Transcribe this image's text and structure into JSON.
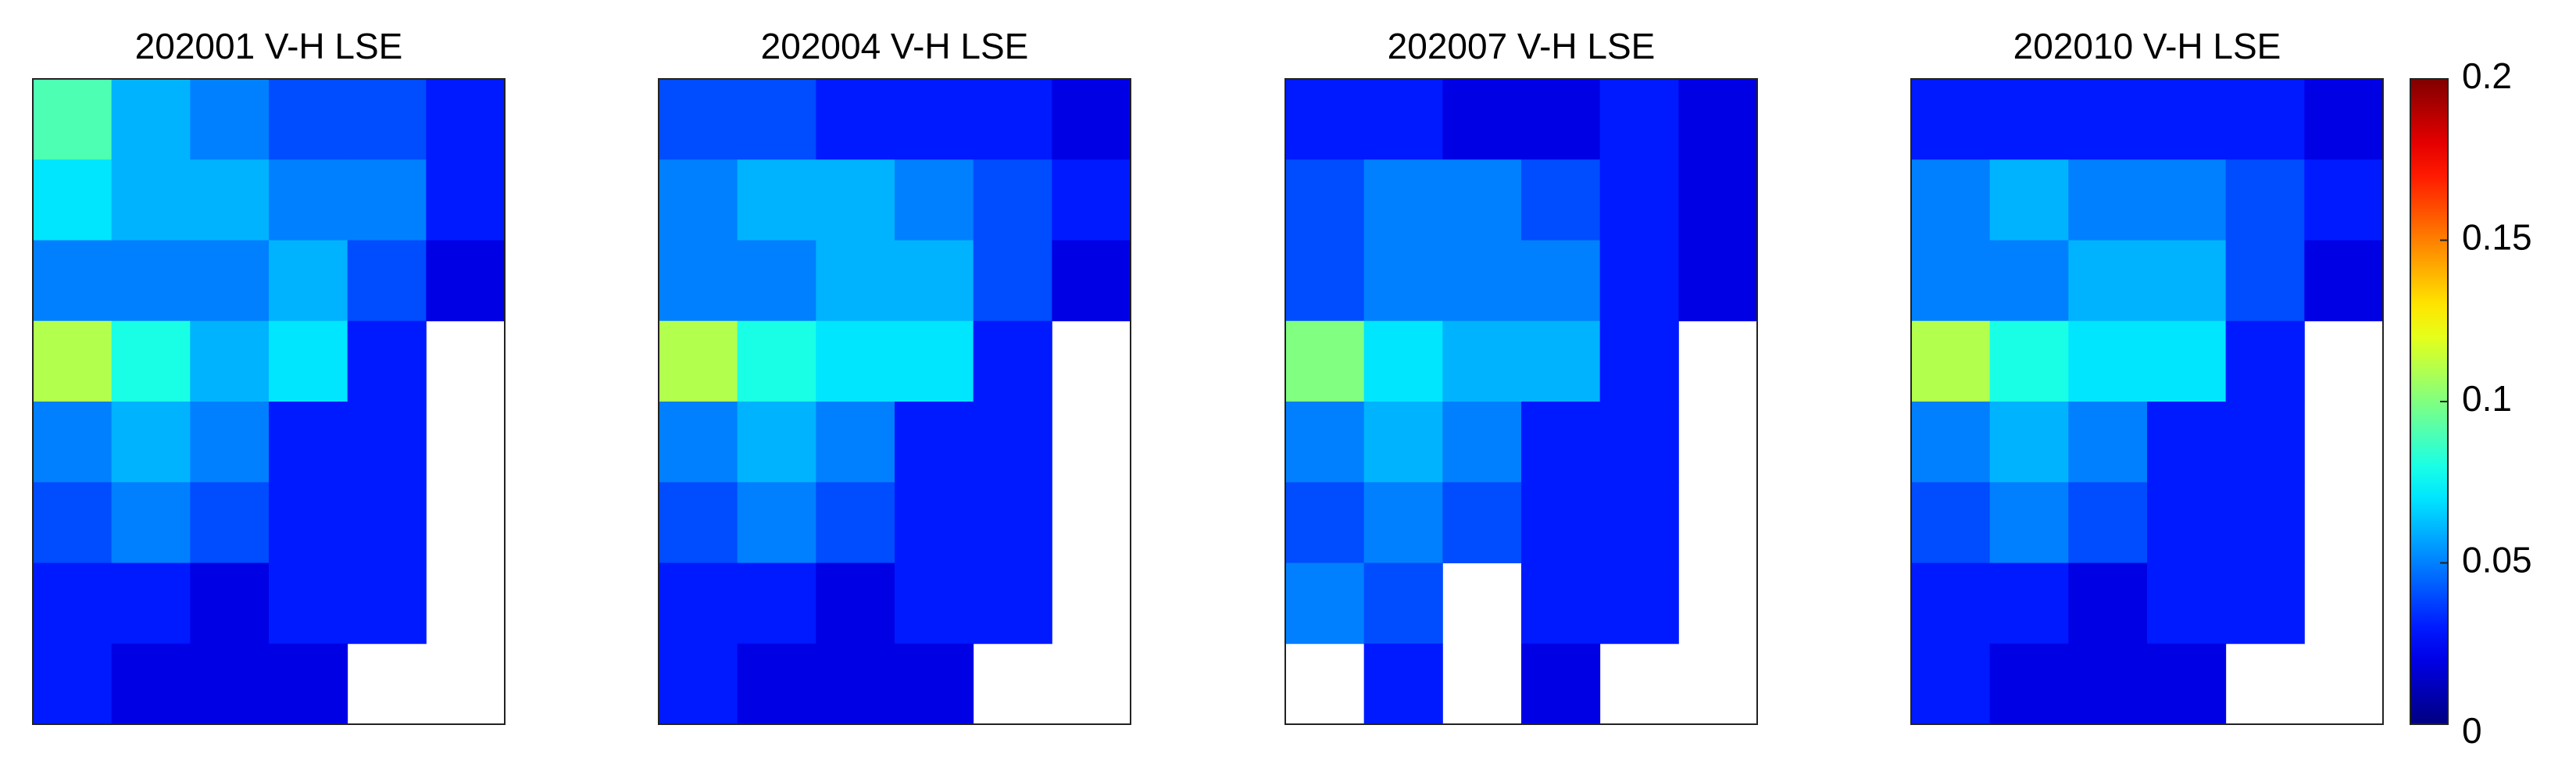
{
  "chart_data": [
    {
      "type": "heatmap",
      "title": "202001 V-H LSE",
      "clim": [
        0,
        0.2
      ],
      "cmap": "jet",
      "values": [
        [
          0.09,
          0.06,
          0.05,
          0.04,
          0.04,
          0.03
        ],
        [
          0.07,
          0.06,
          0.06,
          0.05,
          0.05,
          0.03
        ],
        [
          0.05,
          0.05,
          0.05,
          0.06,
          0.04,
          0.02
        ],
        [
          0.11,
          0.08,
          0.06,
          0.07,
          0.03,
          null
        ],
        [
          0.05,
          0.06,
          0.05,
          0.03,
          0.03,
          null
        ],
        [
          0.04,
          0.05,
          0.04,
          0.03,
          0.03,
          null
        ],
        [
          0.03,
          0.03,
          0.02,
          0.03,
          0.03,
          null
        ],
        [
          0.03,
          0.02,
          0.02,
          0.02,
          null,
          null
        ]
      ]
    },
    {
      "type": "heatmap",
      "title": "202004 V-H LSE",
      "clim": [
        0,
        0.2
      ],
      "cmap": "jet",
      "values": [
        [
          0.04,
          0.04,
          0.03,
          0.03,
          0.03,
          0.02
        ],
        [
          0.05,
          0.06,
          0.06,
          0.05,
          0.04,
          0.03
        ],
        [
          0.05,
          0.05,
          0.06,
          0.06,
          0.04,
          0.02
        ],
        [
          0.11,
          0.08,
          0.07,
          0.07,
          0.03,
          null
        ],
        [
          0.05,
          0.06,
          0.05,
          0.03,
          0.03,
          null
        ],
        [
          0.04,
          0.05,
          0.04,
          0.03,
          0.03,
          null
        ],
        [
          0.03,
          0.03,
          0.02,
          0.03,
          0.03,
          null
        ],
        [
          0.03,
          0.02,
          0.02,
          0.02,
          null,
          null
        ]
      ]
    },
    {
      "type": "heatmap",
      "title": "202007 V-H LSE",
      "clim": [
        0,
        0.2
      ],
      "cmap": "jet",
      "values": [
        [
          0.03,
          0.03,
          0.02,
          0.02,
          0.03,
          0.02
        ],
        [
          0.04,
          0.05,
          0.05,
          0.04,
          0.03,
          0.02
        ],
        [
          0.04,
          0.05,
          0.05,
          0.05,
          0.03,
          0.02
        ],
        [
          0.1,
          0.07,
          0.06,
          0.06,
          0.03,
          null
        ],
        [
          0.05,
          0.06,
          0.05,
          0.03,
          0.03,
          null
        ],
        [
          0.04,
          0.05,
          0.04,
          0.03,
          0.03,
          null
        ],
        [
          0.05,
          0.04,
          null,
          0.03,
          0.03,
          null
        ],
        [
          null,
          0.03,
          null,
          0.02,
          null,
          null
        ]
      ]
    },
    {
      "type": "heatmap",
      "title": "202010 V-H LSE",
      "clim": [
        0,
        0.2
      ],
      "cmap": "jet",
      "values": [
        [
          0.03,
          0.03,
          0.03,
          0.03,
          0.03,
          0.02
        ],
        [
          0.05,
          0.06,
          0.05,
          0.05,
          0.04,
          0.03
        ],
        [
          0.05,
          0.05,
          0.06,
          0.06,
          0.04,
          0.02
        ],
        [
          0.11,
          0.08,
          0.07,
          0.07,
          0.03,
          null
        ],
        [
          0.05,
          0.06,
          0.05,
          0.03,
          0.03,
          null
        ],
        [
          0.04,
          0.05,
          0.04,
          0.03,
          0.03,
          null
        ],
        [
          0.03,
          0.03,
          0.02,
          0.03,
          0.03,
          null
        ],
        [
          0.03,
          0.02,
          0.02,
          0.02,
          null,
          null
        ]
      ],
      "colorbar": {
        "lim": [
          0,
          0.2
        ],
        "ticks": [
          0,
          0.05,
          0.1,
          0.15,
          0.2
        ]
      }
    }
  ]
}
